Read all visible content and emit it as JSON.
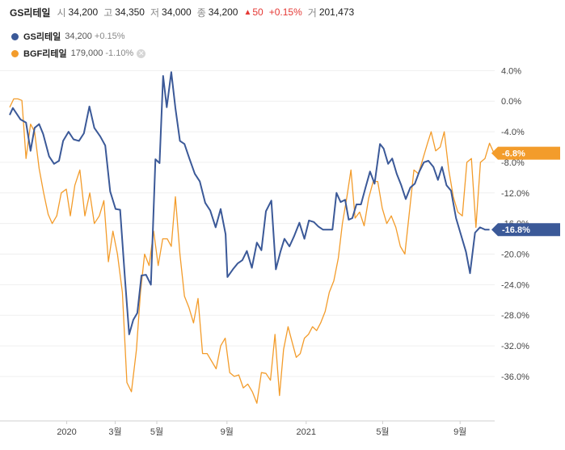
{
  "header": {
    "name": "GS리테일",
    "open_label": "시",
    "open": "34,200",
    "high_label": "고",
    "high": "34,350",
    "low_label": "저",
    "low": "34,000",
    "close_label": "종",
    "close": "34,200",
    "change_arrow": "▲",
    "change": "50",
    "change_pct": "+0.15%",
    "volume_label": "거",
    "volume": "201,473"
  },
  "legend": {
    "items": [
      {
        "name": "GS리테일",
        "value": "34,200",
        "change": "+0.15%",
        "color": "#3b5998",
        "removable": false
      },
      {
        "name": "BGF리테일",
        "value": "179,000",
        "change": "-1.10%",
        "color": "#f39c2b",
        "removable": true
      }
    ]
  },
  "chart_data": {
    "type": "line",
    "y_unit": "%",
    "ylim": [
      -41.5,
      5.2
    ],
    "y_ticks": [
      4,
      0,
      -4,
      -8,
      -12,
      -16,
      -20,
      -24,
      -28,
      -32,
      -36
    ],
    "y_tick_labels": [
      "4.0%",
      "0.0%",
      "-4.0%",
      "-8.0%",
      "-12.0%",
      "-16.0%",
      "-20.0%",
      "-24.0%",
      "-28.0%",
      "-32.0%",
      "-36.0%"
    ],
    "x_ticks": [
      {
        "label": "2020",
        "t": 0.126
      },
      {
        "label": "3월",
        "t": 0.233
      },
      {
        "label": "5월",
        "t": 0.325
      },
      {
        "label": "9월",
        "t": 0.48
      },
      {
        "label": "2021",
        "t": 0.655
      },
      {
        "label": "5월",
        "t": 0.824
      },
      {
        "label": "9월",
        "t": 0.995
      }
    ],
    "grid": true,
    "legend_position": "top-left",
    "series": [
      {
        "name": "GS리테일",
        "color": "#3b5998",
        "last_label": "-16.8%",
        "last_value": -16.8,
        "points": [
          [
            0,
            -1.8
          ],
          [
            0.007,
            -0.9
          ],
          [
            0.015,
            -1.6
          ],
          [
            0.024,
            -2.4
          ],
          [
            0.036,
            -2.8
          ],
          [
            0.046,
            -6.5
          ],
          [
            0.055,
            -3.5
          ],
          [
            0.065,
            -3.0
          ],
          [
            0.074,
            -4.3
          ],
          [
            0.087,
            -7.2
          ],
          [
            0.098,
            -8.2
          ],
          [
            0.109,
            -7.8
          ],
          [
            0.118,
            -5.2
          ],
          [
            0.13,
            -4.0
          ],
          [
            0.141,
            -5.0
          ],
          [
            0.153,
            -5.2
          ],
          [
            0.164,
            -4.2
          ],
          [
            0.176,
            -0.7
          ],
          [
            0.187,
            -3.5
          ],
          [
            0.2,
            -4.6
          ],
          [
            0.211,
            -5.8
          ],
          [
            0.222,
            -11.8
          ],
          [
            0.234,
            -14.1
          ],
          [
            0.244,
            -14.2
          ],
          [
            0.255,
            -23.5
          ],
          [
            0.264,
            -30.5
          ],
          [
            0.273,
            -28.6
          ],
          [
            0.282,
            -27.7
          ],
          [
            0.291,
            -22.8
          ],
          [
            0.301,
            -22.7
          ],
          [
            0.312,
            -24.0
          ],
          [
            0.322,
            -7.6
          ],
          [
            0.331,
            -8.1
          ],
          [
            0.339,
            3.3
          ],
          [
            0.347,
            -0.8
          ],
          [
            0.357,
            3.8
          ],
          [
            0.366,
            -0.9
          ],
          [
            0.376,
            -5.2
          ],
          [
            0.386,
            -5.6
          ],
          [
            0.397,
            -7.5
          ],
          [
            0.409,
            -9.5
          ],
          [
            0.42,
            -10.5
          ],
          [
            0.432,
            -13.3
          ],
          [
            0.443,
            -14.3
          ],
          [
            0.455,
            -16.5
          ],
          [
            0.466,
            -14.1
          ],
          [
            0.477,
            -17.4
          ],
          [
            0.481,
            -23.0
          ],
          [
            0.493,
            -22.0
          ],
          [
            0.504,
            -21.2
          ],
          [
            0.514,
            -20.8
          ],
          [
            0.524,
            -19.6
          ],
          [
            0.535,
            -21.8
          ],
          [
            0.546,
            -18.5
          ],
          [
            0.556,
            -19.5
          ],
          [
            0.566,
            -14.4
          ],
          [
            0.578,
            -13.0
          ],
          [
            0.588,
            -22.0
          ],
          [
            0.598,
            -19.7
          ],
          [
            0.607,
            -18.0
          ],
          [
            0.618,
            -19.0
          ],
          [
            0.628,
            -17.7
          ],
          [
            0.64,
            -15.9
          ],
          [
            0.651,
            -18.0
          ],
          [
            0.661,
            -15.6
          ],
          [
            0.672,
            -15.8
          ],
          [
            0.682,
            -16.4
          ],
          [
            0.692,
            -16.8
          ],
          [
            0.703,
            -16.8
          ],
          [
            0.713,
            -16.8
          ],
          [
            0.722,
            -12.0
          ],
          [
            0.731,
            -13.2
          ],
          [
            0.741,
            -12.9
          ],
          [
            0.749,
            -15.5
          ],
          [
            0.757,
            -15.3
          ],
          [
            0.766,
            -13.5
          ],
          [
            0.776,
            -13.5
          ],
          [
            0.786,
            -11.3
          ],
          [
            0.796,
            -9.2
          ],
          [
            0.806,
            -10.8
          ],
          [
            0.818,
            -5.6
          ],
          [
            0.826,
            -6.2
          ],
          [
            0.836,
            -8.2
          ],
          [
            0.845,
            -7.5
          ],
          [
            0.855,
            -9.5
          ],
          [
            0.865,
            -11.0
          ],
          [
            0.875,
            -12.8
          ],
          [
            0.885,
            -11.3
          ],
          [
            0.895,
            -10.8
          ],
          [
            0.905,
            -9.2
          ],
          [
            0.915,
            -8.0
          ],
          [
            0.925,
            -7.8
          ],
          [
            0.936,
            -8.6
          ],
          [
            0.946,
            -10.3
          ],
          [
            0.955,
            -8.6
          ],
          [
            0.965,
            -11.0
          ],
          [
            0.975,
            -11.7
          ],
          [
            0.986,
            -15.3
          ],
          [
            0.996,
            -17.3
          ],
          [
            1.008,
            -19.7
          ],
          [
            1.017,
            -22.5
          ],
          [
            1.028,
            -17.2
          ],
          [
            1.039,
            -16.5
          ],
          [
            1.05,
            -16.8
          ],
          [
            1.06,
            -16.8
          ]
        ]
      },
      {
        "name": "BGF리테일",
        "color": "#f39c2b",
        "last_label": "-6.8%",
        "last_value": -6.8,
        "points": [
          [
            0,
            -0.8
          ],
          [
            0.009,
            0.3
          ],
          [
            0.018,
            0.3
          ],
          [
            0.027,
            0.1
          ],
          [
            0.036,
            -7.5
          ],
          [
            0.046,
            -3.0
          ],
          [
            0.055,
            -4.0
          ],
          [
            0.065,
            -8.8
          ],
          [
            0.075,
            -12.0
          ],
          [
            0.085,
            -14.8
          ],
          [
            0.094,
            -16.0
          ],
          [
            0.104,
            -15.0
          ],
          [
            0.114,
            -12.0
          ],
          [
            0.125,
            -11.5
          ],
          [
            0.134,
            -15.0
          ],
          [
            0.144,
            -11.0
          ],
          [
            0.155,
            -9.0
          ],
          [
            0.166,
            -15.0
          ],
          [
            0.177,
            -12.0
          ],
          [
            0.187,
            -16.0
          ],
          [
            0.198,
            -15.0
          ],
          [
            0.208,
            -13.0
          ],
          [
            0.218,
            -21.0
          ],
          [
            0.228,
            -17.0
          ],
          [
            0.238,
            -20.0
          ],
          [
            0.249,
            -25.0
          ],
          [
            0.259,
            -36.8
          ],
          [
            0.269,
            -38.0
          ],
          [
            0.28,
            -32.5
          ],
          [
            0.289,
            -25.0
          ],
          [
            0.298,
            -20.0
          ],
          [
            0.308,
            -21.5
          ],
          [
            0.318,
            -17.0
          ],
          [
            0.328,
            -21.5
          ],
          [
            0.338,
            -18.0
          ],
          [
            0.348,
            -18.0
          ],
          [
            0.357,
            -19.0
          ],
          [
            0.366,
            -12.5
          ],
          [
            0.376,
            -20.0
          ],
          [
            0.386,
            -25.5
          ],
          [
            0.396,
            -27.0
          ],
          [
            0.406,
            -29.0
          ],
          [
            0.416,
            -25.8
          ],
          [
            0.426,
            -33.0
          ],
          [
            0.436,
            -33.0
          ],
          [
            0.446,
            -34.0
          ],
          [
            0.456,
            -35.0
          ],
          [
            0.466,
            -32.0
          ],
          [
            0.476,
            -31.0
          ],
          [
            0.486,
            -35.5
          ],
          [
            0.496,
            -36.0
          ],
          [
            0.506,
            -35.8
          ],
          [
            0.516,
            -37.5
          ],
          [
            0.526,
            -37.0
          ],
          [
            0.536,
            -38.0
          ],
          [
            0.546,
            -39.5
          ],
          [
            0.556,
            -35.5
          ],
          [
            0.566,
            -35.6
          ],
          [
            0.576,
            -36.5
          ],
          [
            0.586,
            -30.5
          ],
          [
            0.596,
            -38.5
          ],
          [
            0.605,
            -32.5
          ],
          [
            0.615,
            -29.5
          ],
          [
            0.624,
            -31.5
          ],
          [
            0.633,
            -33.5
          ],
          [
            0.642,
            -33.0
          ],
          [
            0.651,
            -31.0
          ],
          [
            0.66,
            -30.5
          ],
          [
            0.669,
            -29.5
          ],
          [
            0.678,
            -30.0
          ],
          [
            0.687,
            -29.0
          ],
          [
            0.697,
            -27.5
          ],
          [
            0.706,
            -25.0
          ],
          [
            0.716,
            -23.5
          ],
          [
            0.726,
            -20.5
          ],
          [
            0.735,
            -16.0
          ],
          [
            0.745,
            -12.5
          ],
          [
            0.754,
            -9.0
          ],
          [
            0.763,
            -15.3
          ],
          [
            0.773,
            -14.5
          ],
          [
            0.783,
            -16.3
          ],
          [
            0.793,
            -12.7
          ],
          [
            0.803,
            -10.5
          ],
          [
            0.813,
            -10.5
          ],
          [
            0.823,
            -14.0
          ],
          [
            0.833,
            -16.0
          ],
          [
            0.843,
            -15.0
          ],
          [
            0.853,
            -16.5
          ],
          [
            0.863,
            -19.0
          ],
          [
            0.873,
            -20.0
          ],
          [
            0.883,
            -14.5
          ],
          [
            0.893,
            -9.0
          ],
          [
            0.903,
            -9.5
          ],
          [
            0.913,
            -7.5
          ],
          [
            0.923,
            -5.5
          ],
          [
            0.931,
            -4.0
          ],
          [
            0.941,
            -6.5
          ],
          [
            0.951,
            -6.0
          ],
          [
            0.96,
            -4.0
          ],
          [
            0.97,
            -9.0
          ],
          [
            0.98,
            -12.5
          ],
          [
            0.99,
            -14.5
          ],
          [
            1.0,
            -15.0
          ],
          [
            1.01,
            -8.0
          ],
          [
            1.02,
            -7.5
          ],
          [
            1.03,
            -16.5
          ],
          [
            1.04,
            -8.0
          ],
          [
            1.05,
            -7.5
          ],
          [
            1.06,
            -5.5
          ],
          [
            1.07,
            -6.8
          ]
        ]
      }
    ]
  }
}
